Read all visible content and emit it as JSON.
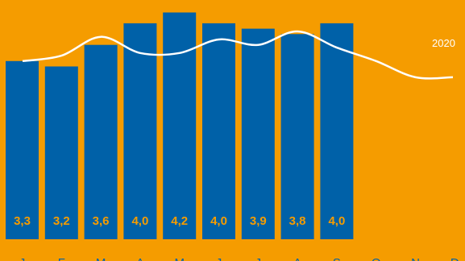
{
  "chart_data": {
    "type": "bar",
    "categories": [
      "J",
      "F",
      "M",
      "A",
      "M",
      "J",
      "J",
      "A",
      "S",
      "O",
      "N",
      "D"
    ],
    "series": [
      {
        "values": [
          3.3,
          3.2,
          3.6,
          4.0,
          4.2,
          4.0,
          3.9,
          3.8,
          4.0,
          null,
          null,
          null
        ],
        "value_labels": [
          "3,3",
          "3,2",
          "3,6",
          "4,0",
          "4,2",
          "4,0",
          "3,9",
          "3,8",
          "4,0"
        ]
      },
      {
        "name": "2020",
        "type": "line",
        "values": [
          3.3,
          3.4,
          3.75,
          3.45,
          3.45,
          3.7,
          3.6,
          3.85,
          3.55,
          3.3,
          3.0,
          3.0
        ]
      }
    ],
    "title": "",
    "xlabel": "",
    "ylabel": "",
    "ylim": [
      0,
      4.2
    ],
    "grid": false,
    "colors": {
      "background": "#F59C00",
      "bars": "#0061A8",
      "bar_labels": "#F59C00",
      "line": "#FFFFFF",
      "tick_labels": "#0061A8",
      "line_label": "#FFFFFF"
    }
  }
}
